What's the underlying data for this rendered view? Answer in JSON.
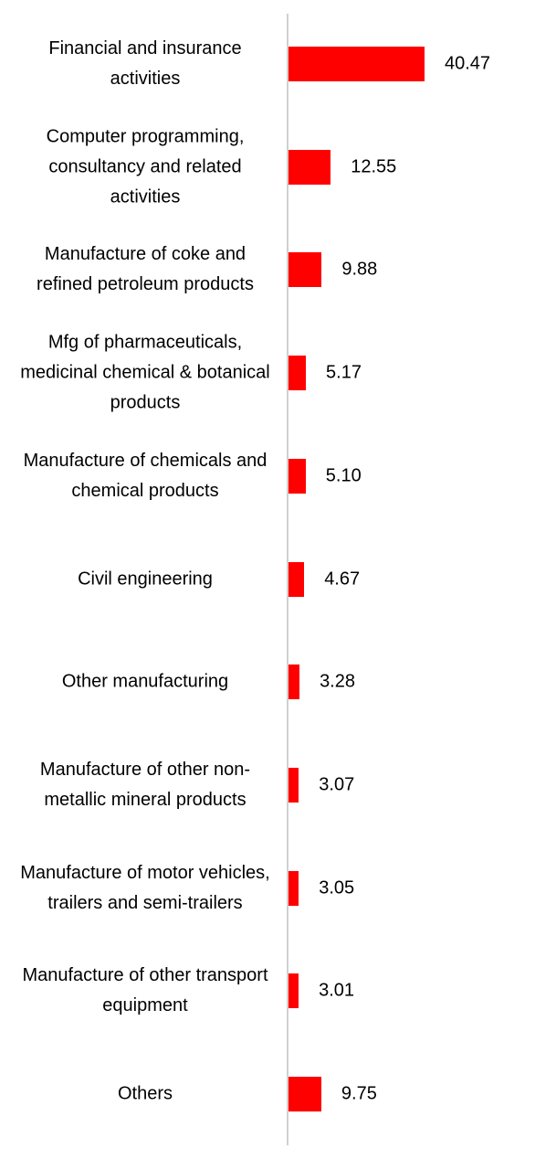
{
  "chart_data": {
    "type": "bar",
    "orientation": "horizontal",
    "color": "#ff0000",
    "categories": [
      "Financial and insurance activities",
      "Computer programming, consultancy and related activities",
      "Manufacture of coke and refined petroleum products",
      "Mfg of pharmaceuticals, medicinal chemical & botanical products",
      "Manufacture of chemicals and chemical products",
      "Civil engineering",
      "Other manufacturing",
      "Manufacture of other non-metallic mineral products",
      "Manufacture of motor vehicles, trailers and semi-trailers",
      "Manufacture of other transport equipment",
      "Others"
    ],
    "values": [
      40.47,
      12.55,
      9.88,
      5.17,
      5.1,
      4.67,
      3.28,
      3.07,
      3.05,
      3.01,
      9.75
    ],
    "value_labels": [
      "40.47",
      "12.55",
      "9.88",
      "5.17",
      "5.10",
      "4.67",
      "3.28",
      "3.07",
      "3.05",
      "3.01",
      "9.75"
    ]
  }
}
